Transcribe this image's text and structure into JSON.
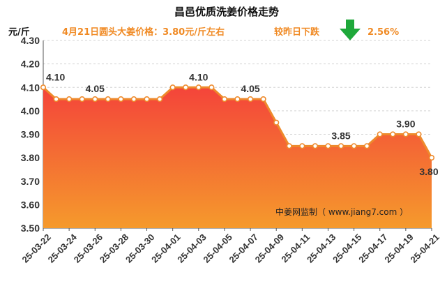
{
  "title": "昌邑优质洗姜价格走势",
  "unit": "元/斤",
  "price_note": "4月21日圆头大姜价格：3.80元/斤左右",
  "change_label": "较昨日下跌",
  "change_value": "2.56%",
  "change_icon": "down-arrow-icon",
  "watermark": "中姜网监制（ www.jiang7.com ）",
  "colors": {
    "line": "#ee8a2c",
    "area_top": "#f4443a",
    "area_bottom": "#f59a2c",
    "accent": "#f08a24",
    "arrow": "#1ea83a",
    "grid": "#d3d3d3"
  },
  "chart_data": {
    "type": "area",
    "x": [
      "25-03-22",
      "25-03-23",
      "25-03-24",
      "25-03-25",
      "25-03-26",
      "25-03-27",
      "25-03-28",
      "25-03-29",
      "25-03-30",
      "25-03-31",
      "25-04-01",
      "25-04-02",
      "25-04-03",
      "25-04-04",
      "25-04-05",
      "25-04-06",
      "25-04-07",
      "25-04-08",
      "25-04-09",
      "25-04-10",
      "25-04-11",
      "25-04-12",
      "25-04-13",
      "25-04-14",
      "25-04-15",
      "25-04-16",
      "25-04-17",
      "25-04-18",
      "25-04-19",
      "25-04-20",
      "25-04-21"
    ],
    "values": [
      4.1,
      4.05,
      4.05,
      4.05,
      4.05,
      4.05,
      4.05,
      4.05,
      4.05,
      4.05,
      4.1,
      4.1,
      4.1,
      4.1,
      4.05,
      4.05,
      4.05,
      4.05,
      3.95,
      3.85,
      3.85,
      3.85,
      3.85,
      3.85,
      3.85,
      3.85,
      3.9,
      3.9,
      3.9,
      3.9,
      3.8
    ],
    "x_tick_labels": [
      "25-03-22",
      "25-03-24",
      "25-03-26",
      "25-03-28",
      "25-03-30",
      "25-04-01",
      "25-04-03",
      "25-04-05",
      "25-04-07",
      "25-04-09",
      "25-04-11",
      "25-04-13",
      "25-04-15",
      "25-04-17",
      "25-04-19",
      "25-04-21"
    ],
    "y_ticks": [
      "3.50",
      "3.60",
      "3.70",
      "3.80",
      "3.90",
      "4.00",
      "4.10",
      "4.20",
      "4.30"
    ],
    "ylim": [
      3.5,
      4.3
    ],
    "grid": true,
    "data_labels": [
      {
        "index": 0,
        "text": "4.10"
      },
      {
        "index": 4,
        "text": "4.05"
      },
      {
        "index": 12,
        "text": "4.10"
      },
      {
        "index": 16,
        "text": "4.05"
      },
      {
        "index": 23,
        "text": "3.85"
      },
      {
        "index": 28,
        "text": "3.90"
      },
      {
        "index": 30,
        "text": "3.80"
      }
    ]
  }
}
